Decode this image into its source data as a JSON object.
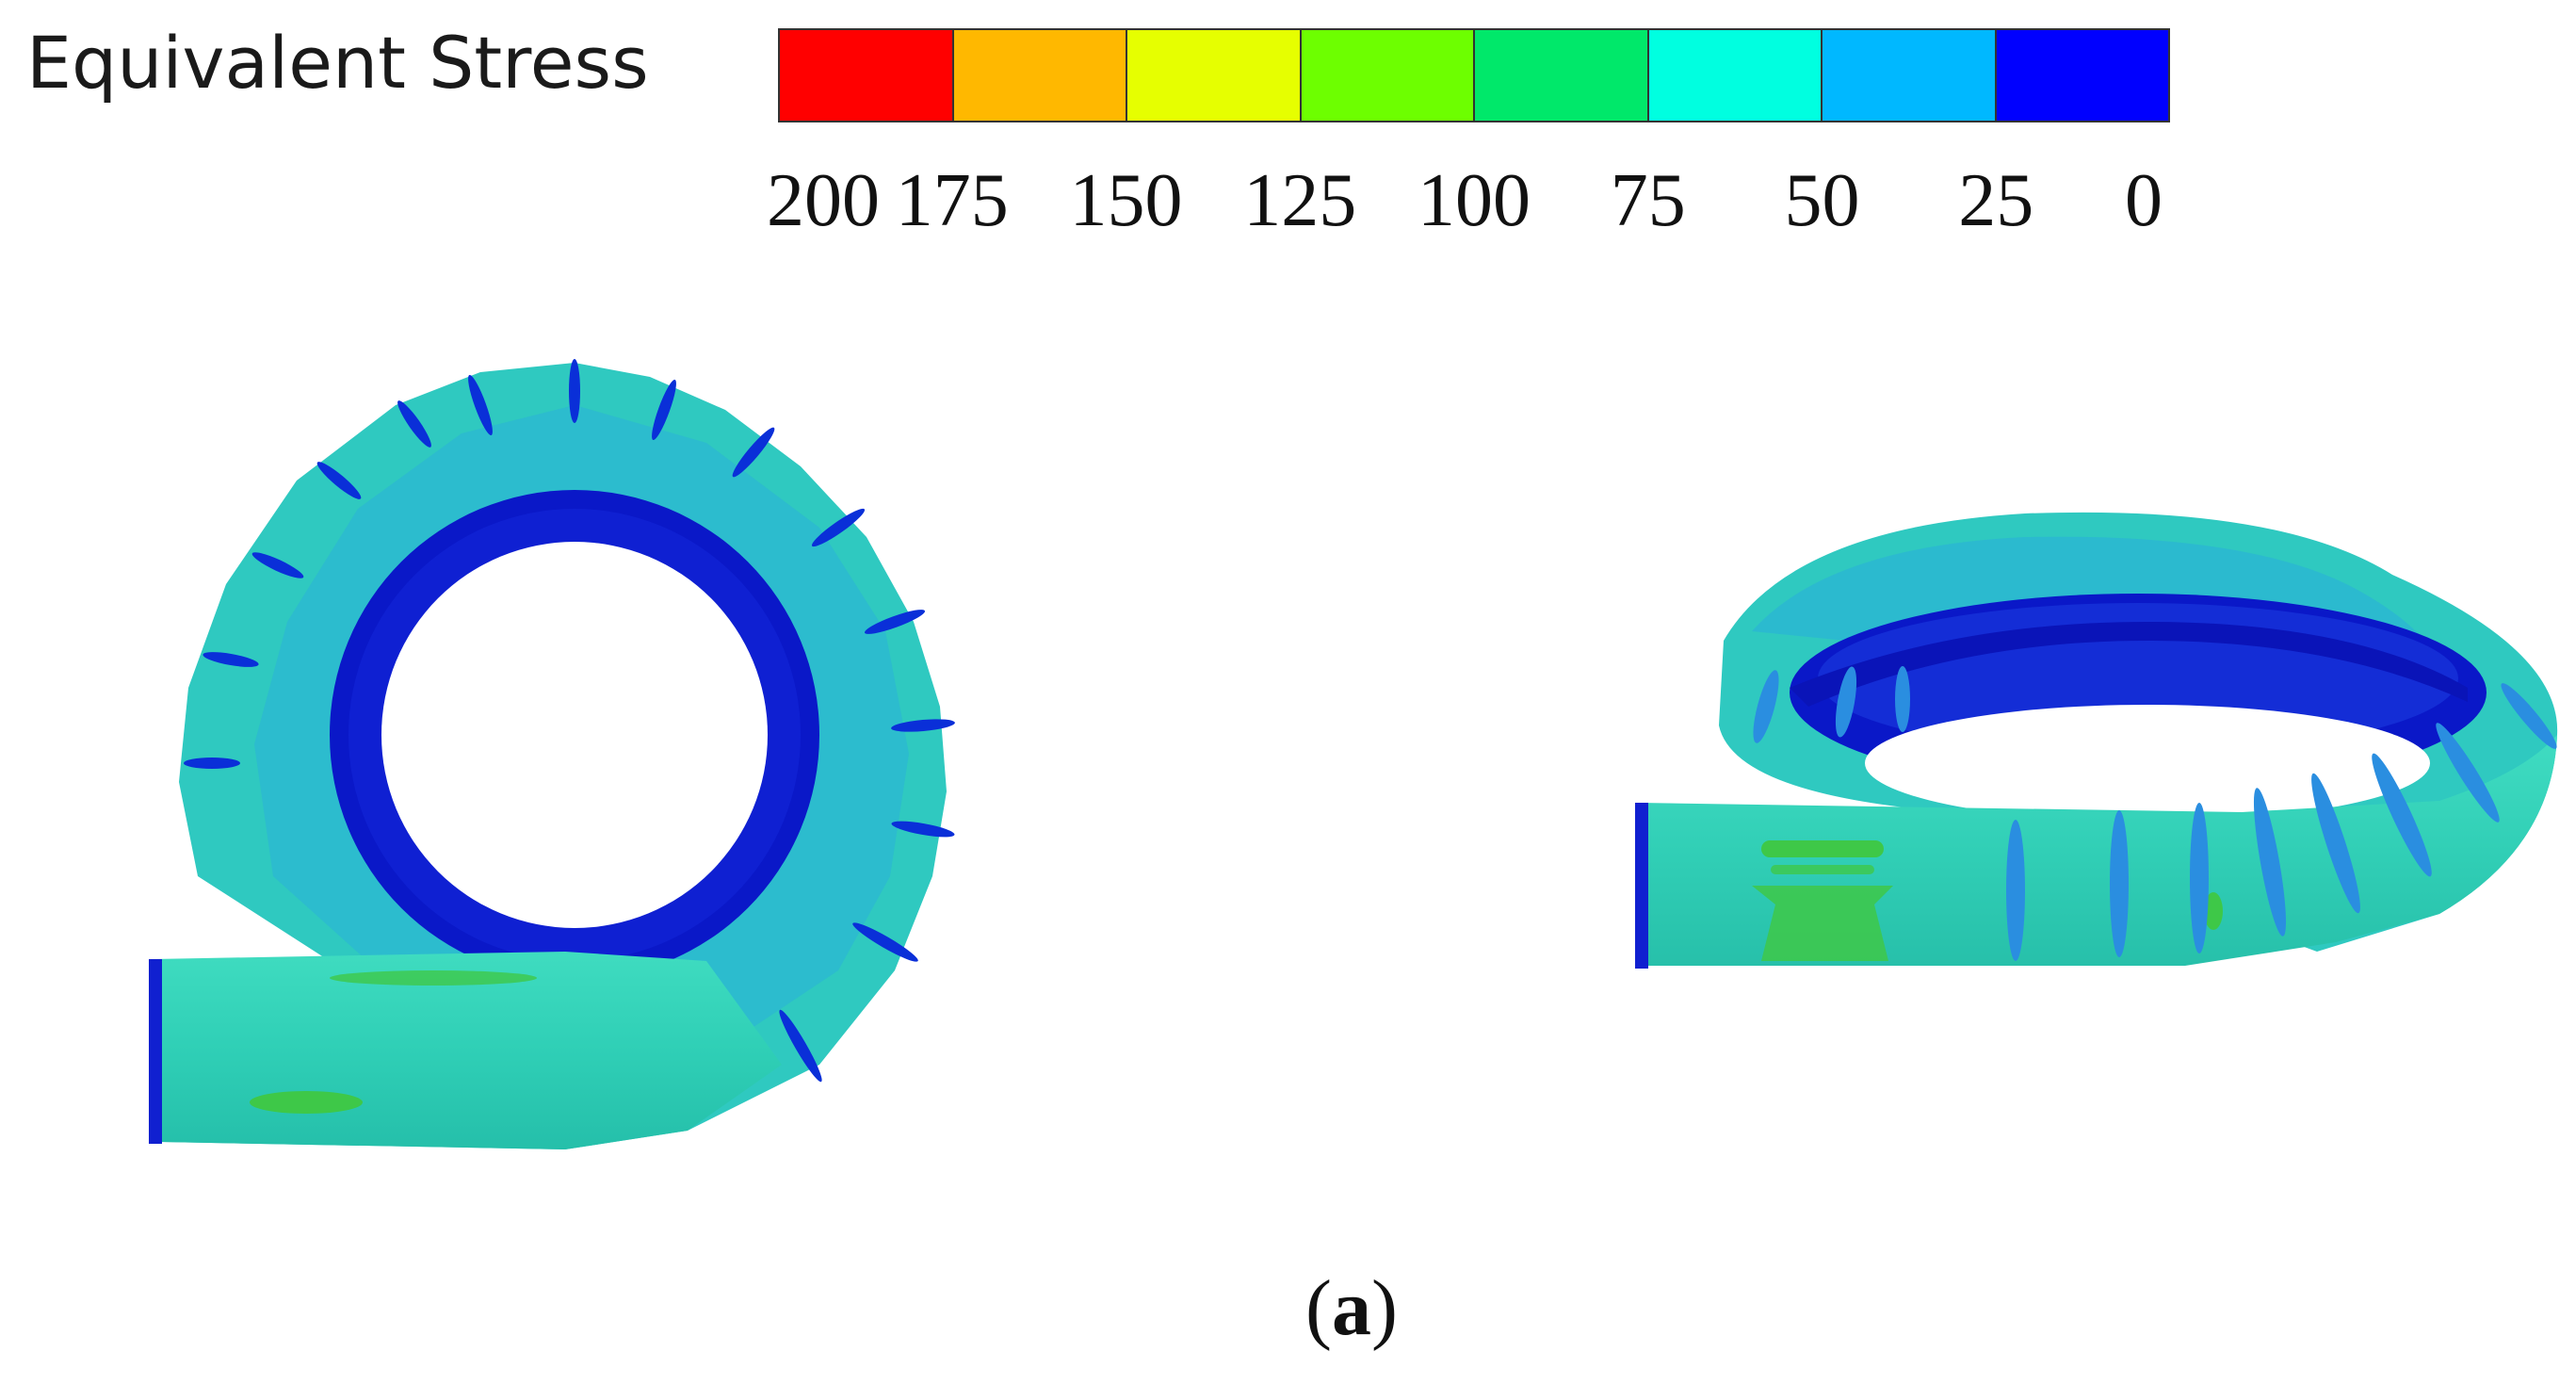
{
  "legend": {
    "title": "Equivalent Stress",
    "colors": [
      "#ff0000",
      "#ffb800",
      "#e6ff00",
      "#6dff00",
      "#00e86a",
      "#00ffe0",
      "#00b8ff",
      "#0000ff"
    ],
    "ticks": [
      "200",
      "175",
      "150",
      "125",
      "100",
      "75",
      "50",
      "25",
      "0"
    ]
  },
  "caption": {
    "open": "(",
    "letter": "a",
    "close": ")"
  },
  "palette": {
    "body": "#35d6b8",
    "body_dark": "#1fb8a8",
    "band": "#28a8e8",
    "rib": "#0a2fd8",
    "inner": "#0a14c8",
    "hotspot": "#3ec848"
  }
}
